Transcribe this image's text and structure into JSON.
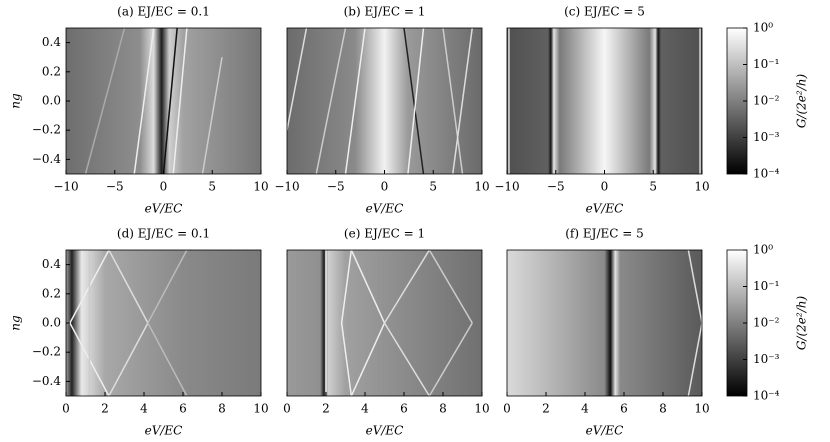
{
  "chart_data": [
    {
      "type": "heatmap",
      "title": "(a) EJ/EC = 0.1",
      "xlabel": "eV/EC",
      "ylabel": "ng",
      "xlim": [
        -10,
        10
      ],
      "ylim": [
        -0.5,
        0.5
      ],
      "xticks": [
        {
          "value": -10,
          "label": "−10"
        },
        {
          "value": -5,
          "label": "−5"
        },
        0,
        5,
        10
      ],
      "yticks": [
        {
          "value": -0.4,
          "label": "−0.4"
        },
        {
          "value": -0.2,
          "label": "−0.2"
        },
        {
          "value": 0,
          "label": "0.0"
        },
        0.2,
        0.4
      ]
    },
    {
      "type": "heatmap",
      "title": "(b) EJ/EC = 1",
      "xlabel": "eV/EC",
      "xlim": [
        -10,
        10
      ],
      "ylim": [
        -0.5,
        0.5
      ],
      "xticks": [
        {
          "value": -10,
          "label": "−10"
        },
        {
          "value": -5,
          "label": "−5"
        },
        0,
        5,
        10
      ]
    },
    {
      "type": "heatmap",
      "title": "(c) EJ/EC = 5",
      "xlabel": "eV/EC",
      "xlim": [
        -10,
        10
      ],
      "ylim": [
        -0.5,
        0.5
      ],
      "xticks": [
        {
          "value": -10,
          "label": "−10"
        },
        {
          "value": -5,
          "label": "−5"
        },
        0,
        5,
        10
      ]
    },
    {
      "type": "heatmap",
      "title": "(d) EJ/EC = 0.1",
      "xlabel": "eV/EC",
      "ylabel": "ng",
      "xlim": [
        0,
        10
      ],
      "ylim": [
        -0.5,
        0.5
      ],
      "xticks": [
        0,
        2,
        4,
        6,
        8,
        10
      ],
      "yticks": [
        {
          "value": -0.4,
          "label": "−0.4"
        },
        {
          "value": -0.2,
          "label": "−0.2"
        },
        {
          "value": 0,
          "label": "0.0"
        },
        0.2,
        0.4
      ]
    },
    {
      "type": "heatmap",
      "title": "(e) EJ/EC = 1",
      "xlabel": "eV/EC",
      "xlim": [
        0,
        10
      ],
      "ylim": [
        -0.5,
        0.5
      ],
      "xticks": [
        0,
        2,
        4,
        6,
        8,
        10
      ]
    },
    {
      "type": "heatmap",
      "title": "(f) EJ/EC = 5",
      "xlabel": "eV/EC",
      "xlim": [
        0,
        10
      ],
      "ylim": [
        -0.5,
        0.5
      ],
      "xticks": [
        0,
        2,
        4,
        6,
        8,
        10
      ]
    },
    {
      "type": "colorbar",
      "label": "G/(2e²/h)",
      "log": true,
      "ylim": [
        0.0001,
        1
      ],
      "yticks": [
        {
          "value": 1,
          "label": "10⁰"
        },
        {
          "value": 0.1,
          "label": "10⁻¹"
        },
        {
          "value": 0.01,
          "label": "10⁻²"
        },
        {
          "value": 0.001,
          "label": "10⁻³"
        },
        {
          "value": 0.0001,
          "label": "10⁻⁴"
        }
      ]
    },
    {
      "type": "colorbar",
      "label": "G/(2e²/h)",
      "log": true,
      "ylim": [
        0.0001,
        1
      ],
      "yticks": [
        {
          "value": 1,
          "label": "10⁰"
        },
        {
          "value": 0.1,
          "label": "10⁻¹"
        },
        {
          "value": 0.01,
          "label": "10⁻²"
        },
        {
          "value": 0.001,
          "label": "10⁻³"
        },
        {
          "value": 0.0001,
          "label": "10⁻⁴"
        }
      ]
    }
  ]
}
